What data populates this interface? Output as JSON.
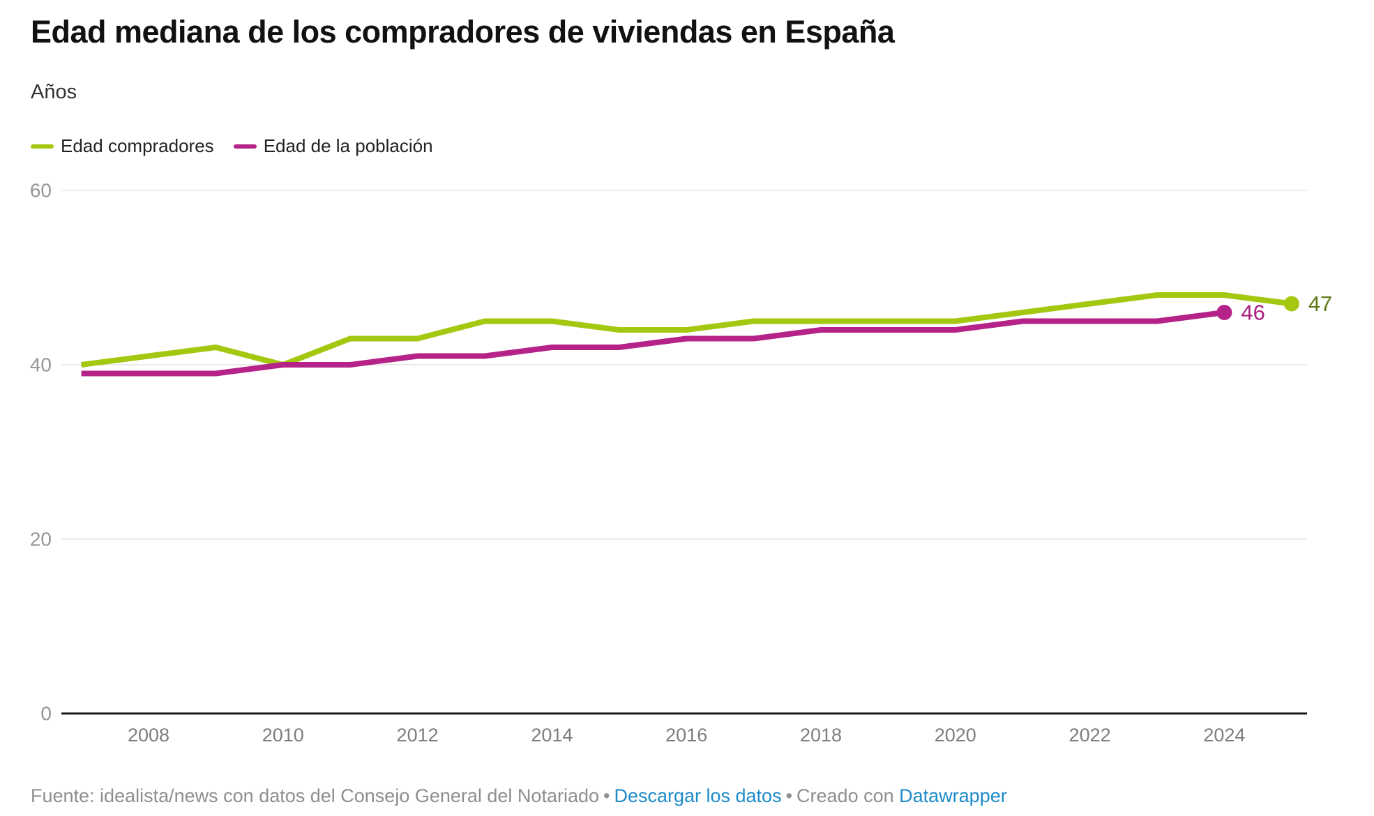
{
  "header": {
    "title": "Edad mediana de los compradores de viviendas en España",
    "subtitle": "Años"
  },
  "legend": {
    "items": [
      {
        "label": "Edad compradores",
        "color": "#a4c710"
      },
      {
        "label": "Edad de la población",
        "color": "#b52288"
      }
    ]
  },
  "chart_data": {
    "type": "line",
    "title": "Edad mediana de los compradores de viviendas en España",
    "ylabel": "Años",
    "xlabel": "",
    "ylim": [
      0,
      60
    ],
    "xlim": [
      2006.7,
      2025.4
    ],
    "grid": "horizontal",
    "legend_position": "top-left",
    "y_ticks": [
      0,
      20,
      40,
      60
    ],
    "x_ticks": [
      2008,
      2010,
      2012,
      2014,
      2016,
      2018,
      2020,
      2022,
      2024
    ],
    "series": [
      {
        "name": "Edad compradores",
        "color": "#a4c710",
        "label_color": "#5f7a17",
        "years": [
          2007,
          2008,
          2009,
          2010,
          2011,
          2012,
          2013,
          2014,
          2015,
          2016,
          2017,
          2018,
          2019,
          2020,
          2021,
          2022,
          2023,
          2024,
          2025
        ],
        "values": [
          40,
          41,
          42,
          40,
          43,
          43,
          45,
          45,
          44,
          44,
          45,
          45,
          45,
          45,
          46,
          47,
          48,
          48,
          47
        ],
        "end_label": "47"
      },
      {
        "name": "Edad de la población",
        "color": "#b52288",
        "label_color": "#aa1f7f",
        "years": [
          2007,
          2008,
          2009,
          2010,
          2011,
          2012,
          2013,
          2014,
          2015,
          2016,
          2017,
          2018,
          2019,
          2020,
          2021,
          2022,
          2023,
          2024
        ],
        "values": [
          39,
          39,
          39,
          40,
          40,
          41,
          41,
          42,
          42,
          43,
          43,
          44,
          44,
          44,
          45,
          45,
          45,
          46
        ],
        "end_label": "46"
      }
    ]
  },
  "footer": {
    "source": "Fuente: idealista/news con datos del Consejo General del Notariado",
    "separator": "•",
    "download_link": "Descargar los datos",
    "created_with": "Creado con",
    "datawrapper_link": "Datawrapper",
    "link_color": "#1e8bc9"
  }
}
